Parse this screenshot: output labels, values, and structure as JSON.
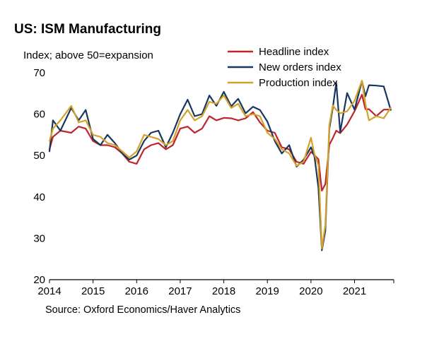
{
  "chart_data": {
    "type": "line",
    "title": "US: ISM Manufacturing",
    "ylabel": "Index; above 50=expansion",
    "xlabel": "",
    "source": "Source: Oxford Economics/Haver Analytics",
    "ylim": [
      20,
      70
    ],
    "xlim": [
      2014.0,
      2021.9
    ],
    "yticks": [
      "20",
      "30",
      "40",
      "50",
      "60",
      "70"
    ],
    "xticks": [
      "2014",
      "2015",
      "2016",
      "2017",
      "2018",
      "2019",
      "2020",
      "2021"
    ],
    "grid": false,
    "legend_position": "top-right",
    "series": [
      {
        "name": "Headline index",
        "color": "#c0232c",
        "x": [
          2014.0,
          2014.08,
          2014.25,
          2014.5,
          2014.67,
          2014.83,
          2015.0,
          2015.17,
          2015.33,
          2015.5,
          2015.67,
          2015.83,
          2016.0,
          2016.17,
          2016.33,
          2016.5,
          2016.67,
          2016.83,
          2017.0,
          2017.17,
          2017.33,
          2017.5,
          2017.67,
          2017.83,
          2018.0,
          2018.17,
          2018.33,
          2018.5,
          2018.67,
          2018.83,
          2019.0,
          2019.17,
          2019.33,
          2019.5,
          2019.67,
          2019.83,
          2020.0,
          2020.08,
          2020.17,
          2020.25,
          2020.33,
          2020.42,
          2020.5,
          2020.58,
          2020.67,
          2020.83,
          2021.0,
          2021.17,
          2021.25,
          2021.33,
          2021.5,
          2021.67,
          2021.83
        ],
        "values": [
          51.5,
          54.5,
          56.0,
          55.5,
          57.0,
          56.5,
          53.5,
          52.5,
          52.5,
          52.0,
          50.5,
          48.5,
          48.0,
          51.5,
          52.5,
          53.0,
          51.5,
          52.5,
          56.5,
          57.0,
          55.5,
          56.5,
          59.5,
          58.5,
          59.1,
          59.0,
          58.5,
          59.0,
          60.5,
          58.0,
          56.0,
          55.5,
          52.0,
          51.5,
          48.5,
          48.0,
          50.9,
          50.1,
          49.1,
          41.5,
          43.1,
          52.6,
          54.2,
          56.0,
          55.4,
          57.5,
          60.7,
          64.7,
          61.2,
          61.2,
          59.5,
          61.1,
          61.1
        ]
      },
      {
        "name": "New orders index",
        "color": "#17375e",
        "x": [
          2014.0,
          2014.08,
          2014.25,
          2014.5,
          2014.67,
          2014.83,
          2015.0,
          2015.17,
          2015.33,
          2015.5,
          2015.67,
          2015.83,
          2016.0,
          2016.17,
          2016.33,
          2016.5,
          2016.67,
          2016.83,
          2017.0,
          2017.17,
          2017.33,
          2017.5,
          2017.67,
          2017.83,
          2018.0,
          2018.17,
          2018.33,
          2018.5,
          2018.67,
          2018.83,
          2019.0,
          2019.17,
          2019.33,
          2019.5,
          2019.67,
          2019.83,
          2020.0,
          2020.08,
          2020.17,
          2020.25,
          2020.33,
          2020.42,
          2020.5,
          2020.58,
          2020.67,
          2020.83,
          2021.0,
          2021.17,
          2021.25,
          2021.33,
          2021.5,
          2021.67,
          2021.83
        ],
        "values": [
          51.0,
          58.5,
          56.0,
          61.5,
          58.5,
          61.0,
          54.0,
          52.5,
          55.0,
          53.0,
          50.5,
          49.0,
          50.0,
          53.5,
          55.5,
          56.0,
          52.0,
          55.5,
          60.0,
          63.5,
          59.5,
          60.0,
          64.5,
          62.0,
          65.4,
          61.9,
          63.7,
          60.2,
          61.8,
          61.0,
          58.2,
          53.5,
          50.5,
          52.5,
          47.3,
          49.0,
          52.0,
          49.8,
          42.2,
          27.1,
          31.8,
          56.4,
          61.5,
          67.6,
          55.7,
          65.1,
          61.1,
          68.0,
          64.3,
          67.0,
          66.9,
          66.7,
          61.0
        ]
      },
      {
        "name": "Production index",
        "color": "#d4a12a",
        "x": [
          2014.0,
          2014.08,
          2014.25,
          2014.5,
          2014.67,
          2014.83,
          2015.0,
          2015.17,
          2015.33,
          2015.5,
          2015.67,
          2015.83,
          2016.0,
          2016.17,
          2016.33,
          2016.5,
          2016.67,
          2016.83,
          2017.0,
          2017.17,
          2017.33,
          2017.5,
          2017.67,
          2017.83,
          2018.0,
          2018.17,
          2018.33,
          2018.5,
          2018.67,
          2018.83,
          2019.0,
          2019.17,
          2019.33,
          2019.5,
          2019.67,
          2019.83,
          2020.0,
          2020.08,
          2020.17,
          2020.25,
          2020.33,
          2020.42,
          2020.5,
          2020.58,
          2020.67,
          2020.83,
          2021.0,
          2021.17,
          2021.25,
          2021.33,
          2021.5,
          2021.67,
          2021.83
        ],
        "values": [
          53.5,
          56.5,
          58.5,
          62.0,
          58.0,
          58.5,
          55.0,
          54.5,
          53.0,
          52.5,
          51.0,
          49.5,
          51.0,
          55.0,
          54.5,
          54.0,
          52.5,
          53.5,
          58.5,
          61.0,
          58.5,
          59.5,
          63.0,
          62.5,
          64.5,
          61.5,
          62.5,
          59.5,
          60.0,
          59.5,
          55.5,
          54.0,
          51.5,
          50.5,
          47.5,
          48.5,
          54.3,
          50.3,
          47.7,
          27.5,
          33.2,
          57.3,
          62.1,
          61.0,
          60.2,
          60.7,
          63.2,
          68.1,
          62.5,
          58.5,
          59.5,
          59.0,
          61.5
        ]
      }
    ]
  }
}
